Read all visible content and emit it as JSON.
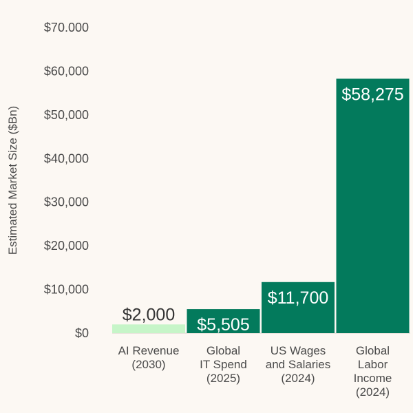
{
  "chart_data": {
    "type": "bar",
    "ylabel": "Estimated Market Size ($Bn)",
    "ylim": [
      0,
      70000
    ],
    "yticks": [
      {
        "value": 0,
        "label": "$0"
      },
      {
        "value": 10000,
        "label": "$10,000"
      },
      {
        "value": 20000,
        "label": "$20,000"
      },
      {
        "value": 30000,
        "label": "$30,000"
      },
      {
        "value": 40000,
        "label": "$40,000"
      },
      {
        "value": 50000,
        "label": "$50,000"
      },
      {
        "value": 60000,
        "label": "$60,000"
      },
      {
        "value": 70000,
        "label": "$70.000"
      }
    ],
    "bars": [
      {
        "category": [
          "AI Revenue",
          "(2030)"
        ],
        "value": 2000,
        "label": "$2,000",
        "color": "#c6f5c8",
        "label_color": "#333333"
      },
      {
        "category": [
          "Global",
          "IT Spend",
          "(2025)"
        ],
        "value": 5505,
        "label": "$5,505",
        "color": "#037a5c",
        "label_color": "#ffffff"
      },
      {
        "category": [
          "US Wages",
          "and Salaries",
          "(2024)"
        ],
        "value": 11700,
        "label": "$11,700",
        "color": "#037a5c",
        "label_color": "#ffffff"
      },
      {
        "category": [
          "Global",
          "Labor",
          "Income",
          "(2024)"
        ],
        "value": 58275,
        "label": "$58,275",
        "color": "#037a5c",
        "label_color": "#ffffff"
      }
    ],
    "grid": false,
    "legend": "none"
  }
}
